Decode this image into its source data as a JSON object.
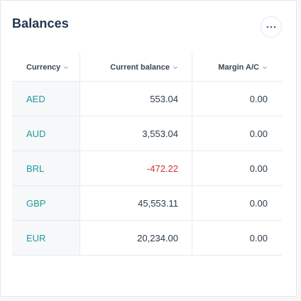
{
  "card": {
    "title": "Balances",
    "more_icon": "more-horizontal-icon"
  },
  "table": {
    "columns": [
      {
        "label": "Currency",
        "sort_icon": "chevron-down-icon"
      },
      {
        "label": "Current balance",
        "sort_icon": "chevron-down-icon"
      },
      {
        "label": "Margin A/C",
        "sort_icon": "chevron-down-icon"
      }
    ],
    "rows": [
      {
        "currency": "AED",
        "balance": "553.04",
        "margin": "0.00",
        "negative": false
      },
      {
        "currency": "AUD",
        "balance": "3,553.04",
        "margin": "0.00",
        "negative": false
      },
      {
        "currency": "BRL",
        "balance": "-472.22",
        "margin": "0.00",
        "negative": true
      },
      {
        "currency": "GBP",
        "balance": "45,553.11",
        "margin": "0.00",
        "negative": false
      },
      {
        "currency": "EUR",
        "balance": "20,234.00",
        "margin": "0.00",
        "negative": false
      }
    ]
  },
  "colors": {
    "accent": "#1d9aa0",
    "negative": "#d0342c",
    "title": "#22364f"
  }
}
